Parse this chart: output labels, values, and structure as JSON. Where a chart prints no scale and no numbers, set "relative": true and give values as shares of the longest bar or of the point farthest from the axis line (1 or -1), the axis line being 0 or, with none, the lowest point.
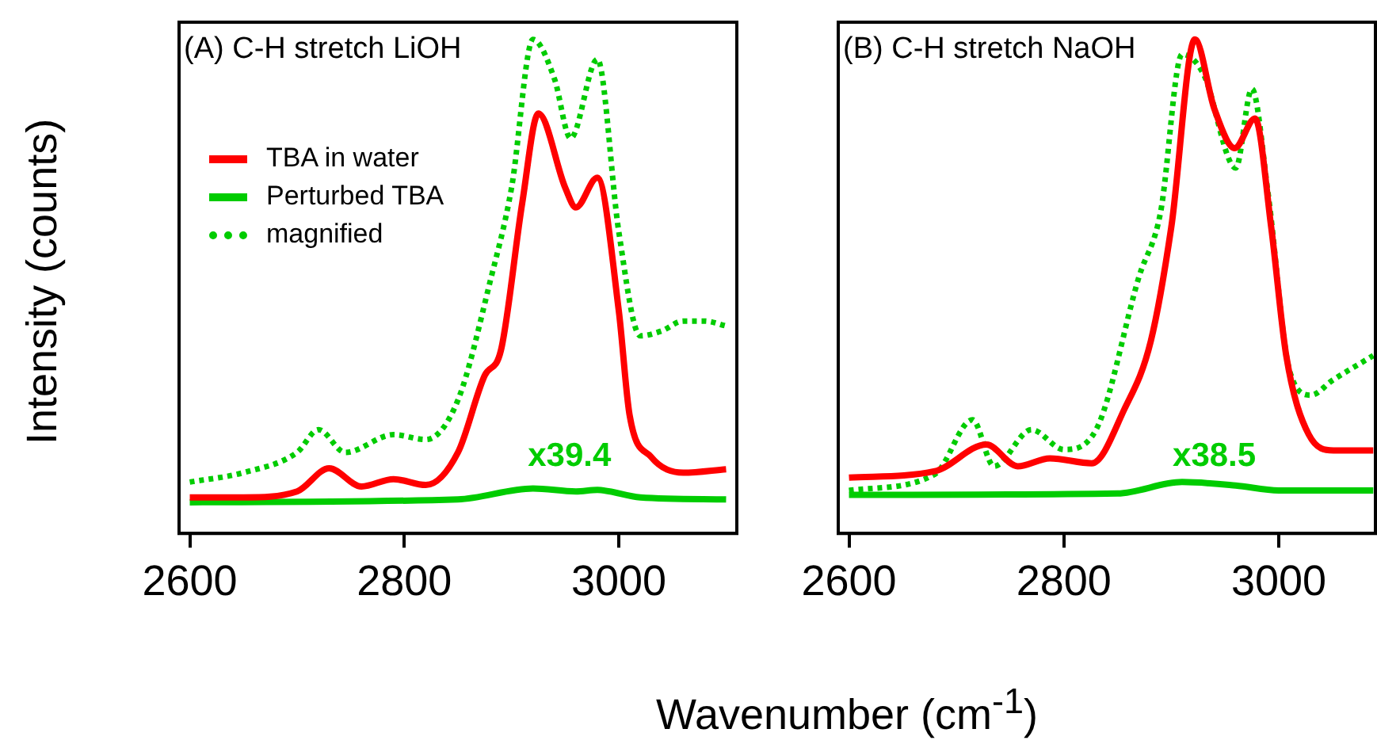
{
  "chart_data": [
    {
      "type": "line",
      "title": "(A) C-H stretch LiOH",
      "ylabel": "Intensity (counts)",
      "relative": true,
      "xlim": [
        2590,
        3110
      ],
      "xticks": [
        2600,
        2800,
        3000
      ],
      "legend": "top left",
      "annotations": [
        "x39.4"
      ],
      "series": [
        {
          "name": "TBA in water",
          "color": "#ff0000",
          "line_style": "solid",
          "x": [
            2600,
            2650,
            2700,
            2730,
            2760,
            2790,
            2820,
            2850,
            2875,
            2890,
            2910,
            2925,
            2950,
            2960,
            2980,
            3000,
            3010,
            3030,
            3060,
            3100
          ],
          "values": [
            0.073,
            0.073,
            0.085,
            0.132,
            0.095,
            0.11,
            0.098,
            0.164,
            0.32,
            0.37,
            0.67,
            0.85,
            0.7,
            0.66,
            0.72,
            0.45,
            0.24,
            0.155,
            0.123,
            0.13
          ]
        },
        {
          "name": "Perturbed TBA",
          "color": "#00cc00",
          "line_style": "solid",
          "x": [
            2600,
            2850,
            2920,
            2960,
            2980,
            3020,
            3100
          ],
          "values": [
            0.063,
            0.069,
            0.091,
            0.085,
            0.088,
            0.073,
            0.069
          ]
        },
        {
          "name": "magnified",
          "color": "#00cc00",
          "line_style": "dotted",
          "x": [
            2600,
            2650,
            2700,
            2720,
            2745,
            2790,
            2820,
            2850,
            2880,
            2900,
            2920,
            2940,
            2955,
            2980,
            3000,
            3020,
            3040,
            3060,
            3080,
            3100
          ],
          "values": [
            0.104,
            0.123,
            0.164,
            0.21,
            0.164,
            0.2,
            0.19,
            0.27,
            0.51,
            0.7,
            1,
            0.92,
            0.8,
            0.96,
            0.61,
            0.4,
            0.41,
            0.43,
            0.43,
            0.42
          ]
        }
      ]
    },
    {
      "type": "line",
      "title": "(B) C-H stretch NaOH",
      "xlabel": "Wavenumber (cm$^{-1}$)",
      "relative": true,
      "xlim": [
        2590,
        3090
      ],
      "xticks": [
        2600,
        2800,
        3000
      ],
      "annotations": [
        "x38.5"
      ],
      "series": [
        {
          "color": "#ff0000",
          "line_style": "solid",
          "x": [
            2600,
            2680,
            2728,
            2757,
            2787,
            2826,
            2856,
            2881,
            2900,
            2922,
            2940,
            2959,
            2978,
            2993,
            3007,
            3028,
            3051,
            3088
          ],
          "values": [
            0.113,
            0.126,
            0.18,
            0.136,
            0.152,
            0.142,
            0.25,
            0.39,
            0.62,
            1,
            0.86,
            0.78,
            0.84,
            0.62,
            0.36,
            0.2,
            0.168,
            0.168
          ]
        },
        {
          "color": "#00cc00",
          "line_style": "solid",
          "x": [
            2600,
            2850,
            2910,
            2960,
            3000,
            3088
          ],
          "values": [
            0.078,
            0.081,
            0.104,
            0.097,
            0.087,
            0.087
          ]
        },
        {
          "color": "#00cc00",
          "line_style": "dotted",
          "x": [
            2600,
            2680,
            2715,
            2735,
            2770,
            2800,
            2830,
            2870,
            2890,
            2910,
            2930,
            2960,
            2975,
            2990,
            3010,
            3030,
            3050,
            3088
          ],
          "values": [
            0.087,
            0.12,
            0.23,
            0.136,
            0.21,
            0.17,
            0.21,
            0.52,
            0.65,
            0.97,
            0.93,
            0.74,
            0.9,
            0.69,
            0.33,
            0.28,
            0.31,
            0.36
          ]
        }
      ]
    }
  ]
}
